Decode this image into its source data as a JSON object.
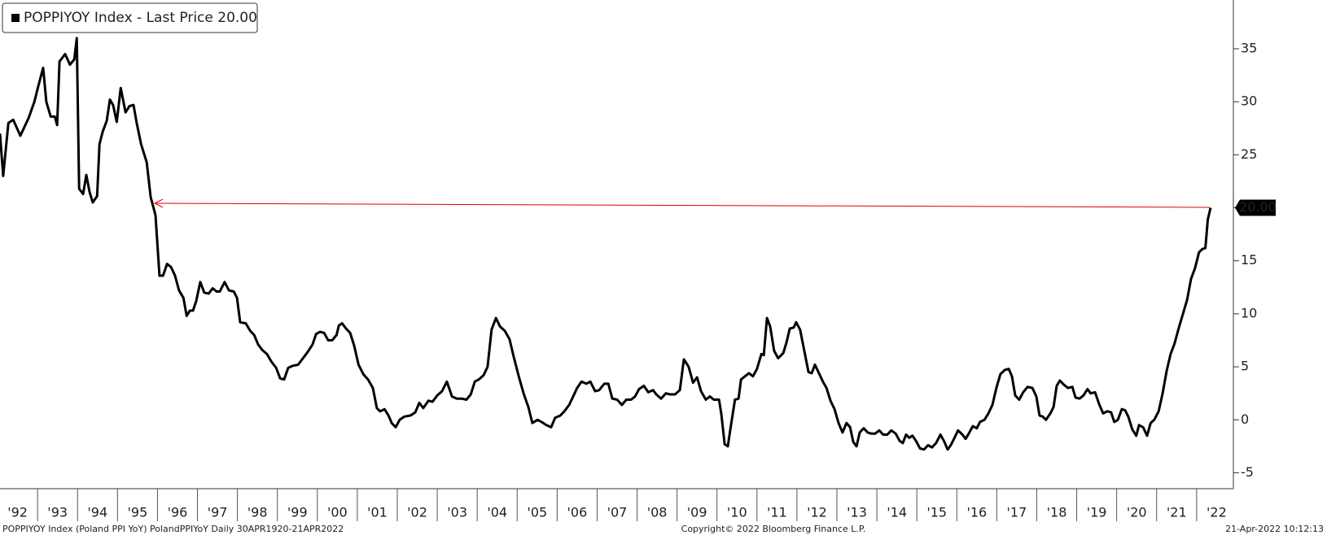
{
  "chart_data": {
    "type": "line",
    "series": [
      {
        "name": "POPPIYOY Index - Last Price 20.00",
        "color": "#000000",
        "x": [
          1992.06,
          1992.14,
          1992.27,
          1992.39,
          1992.57,
          1992.78,
          1992.92,
          1993.02,
          1993.14,
          1993.22,
          1993.33,
          1993.43,
          1993.49,
          1993.55,
          1993.69,
          1993.81,
          1993.92,
          1993.98,
          1994.04,
          1994.14,
          1994.22,
          1994.3,
          1994.38,
          1994.49,
          1994.55,
          1994.63,
          1994.73,
          1994.81,
          1994.89,
          1994.98,
          1995.08,
          1995.2,
          1995.3,
          1995.4,
          1995.48,
          1995.59,
          1995.73,
          1995.83,
          1995.95,
          1996.05,
          1996.14,
          1996.24,
          1996.34,
          1996.44,
          1996.54,
          1996.65,
          1996.73,
          1996.81,
          1996.89,
          1996.97,
          1997.07,
          1997.17,
          1997.28,
          1997.38,
          1997.48,
          1997.56,
          1997.68,
          1997.79,
          1997.91,
          1997.99,
          1998.07,
          1998.21,
          1998.32,
          1998.42,
          1998.52,
          1998.62,
          1998.74,
          1998.85,
          1998.97,
          1999.07,
          1999.17,
          1999.27,
          1999.39,
          1999.52,
          1999.64,
          1999.76,
          1999.88,
          1999.97,
          2000.07,
          2000.17,
          2000.27,
          2000.37,
          2000.48,
          2000.54,
          2000.62,
          2000.72,
          2000.82,
          2000.92,
          2001.03,
          2001.15,
          2001.27,
          2001.39,
          2001.49,
          2001.57,
          2001.68,
          2001.78,
          2001.86,
          2001.96,
          2002.06,
          2002.18,
          2002.33,
          2002.45,
          2002.55,
          2002.65,
          2002.78,
          2002.88,
          2003.0,
          2003.12,
          2003.24,
          2003.37,
          2003.49,
          2003.61,
          2003.73,
          2003.84,
          2003.94,
          2004.04,
          2004.16,
          2004.26,
          2004.36,
          2004.47,
          2004.57,
          2004.69,
          2004.81,
          2004.91,
          2005.04,
          2005.16,
          2005.28,
          2005.38,
          2005.51,
          2005.61,
          2005.73,
          2005.85,
          2005.95,
          2006.08,
          2006.18,
          2006.3,
          2006.4,
          2006.5,
          2006.61,
          2006.73,
          2006.83,
          2006.95,
          2007.05,
          2007.18,
          2007.28,
          2007.38,
          2007.5,
          2007.62,
          2007.73,
          2007.85,
          2007.95,
          2008.05,
          2008.17,
          2008.28,
          2008.4,
          2008.48,
          2008.6,
          2008.72,
          2008.82,
          2008.95,
          2009.07,
          2009.17,
          2009.29,
          2009.4,
          2009.5,
          2009.6,
          2009.72,
          2009.82,
          2009.92,
          2010.05,
          2010.11,
          2010.19,
          2010.27,
          2010.35,
          2010.45,
          2010.54,
          2010.6,
          2010.7,
          2010.8,
          2010.9,
          2011.0,
          2011.11,
          2011.17,
          2011.25,
          2011.33,
          2011.43,
          2011.53,
          2011.66,
          2011.74,
          2011.82,
          2011.92,
          2011.98,
          2012.08,
          2012.19,
          2012.29,
          2012.37,
          2012.45,
          2012.55,
          2012.65,
          2012.74,
          2012.84,
          2012.94,
          2013.04,
          2013.14,
          2013.24,
          2013.33,
          2013.41,
          2013.49,
          2013.57,
          2013.67,
          2013.77,
          2013.86,
          2013.96,
          2014.06,
          2014.16,
          2014.26,
          2014.36,
          2014.47,
          2014.57,
          2014.65,
          2014.73,
          2014.81,
          2014.89,
          2014.98,
          2015.08,
          2015.18,
          2015.28,
          2015.38,
          2015.48,
          2015.59,
          2015.69,
          2015.77,
          2015.85,
          2015.93,
          2016.03,
          2016.14,
          2016.22,
          2016.3,
          2016.4,
          2016.5,
          2016.58,
          2016.69,
          2016.79,
          2016.89,
          2016.99,
          2017.09,
          2017.2,
          2017.3,
          2017.38,
          2017.46,
          2017.56,
          2017.66,
          2017.77,
          2017.89,
          2017.99,
          2018.07,
          2018.15,
          2018.23,
          2018.34,
          2018.42,
          2018.5,
          2018.58,
          2018.68,
          2018.78,
          2018.89,
          2018.97,
          2019.07,
          2019.17,
          2019.27,
          2019.35,
          2019.46,
          2019.56,
          2019.66,
          2019.76,
          2019.86,
          2019.94,
          2020.03,
          2020.13,
          2020.21,
          2020.29,
          2020.39,
          2020.49,
          2020.56,
          2020.66,
          2020.76,
          2020.85,
          2020.94,
          2021.05,
          2021.15,
          2021.25,
          2021.35,
          2021.45,
          2021.55,
          2021.66,
          2021.76,
          2021.86,
          2021.96,
          2022.06,
          2022.14,
          2022.22,
          2022.28,
          2022.35
        ],
        "values": [
          27,
          23,
          28,
          28.3,
          26.8,
          28.5,
          30,
          31.5,
          33.2,
          30,
          28.6,
          28.6,
          27.8,
          33.8,
          34.5,
          33.5,
          34,
          36,
          21.8,
          21.3,
          23.1,
          21.5,
          20.5,
          21.1,
          26,
          27.2,
          28.2,
          30.2,
          29.7,
          28.1,
          31.3,
          29,
          29.6,
          29.7,
          28,
          26,
          24.3,
          21,
          19.3,
          13.6,
          13.6,
          14.7,
          14.4,
          13.6,
          12.2,
          11.5,
          9.8,
          10.3,
          10.3,
          11.2,
          13,
          12,
          11.9,
          12.4,
          12.1,
          12.1,
          13,
          12.2,
          12.1,
          11.5,
          9.2,
          9.1,
          8.4,
          8.0,
          7.1,
          6.6,
          6.2,
          5.5,
          4.9,
          3.9,
          3.8,
          4.9,
          5.1,
          5.2,
          5.8,
          6.4,
          7.1,
          8.1,
          8.3,
          8.2,
          7.5,
          7.5,
          8.0,
          8.9,
          9.1,
          8.6,
          8.2,
          7.0,
          5.2,
          4.3,
          3.8,
          3.0,
          1.1,
          0.8,
          1.0,
          0.4,
          -0.3,
          -0.7,
          0,
          0.3,
          0.4,
          0.7,
          1.6,
          1.1,
          1.8,
          1.7,
          2.3,
          2.7,
          3.6,
          2.2,
          2.0,
          2.0,
          1.9,
          2.4,
          3.6,
          3.8,
          4.2,
          5.0,
          8.5,
          9.6,
          8.8,
          8.4,
          7.6,
          6.0,
          4.1,
          2.5,
          1.2,
          -0.3,
          0,
          -0.2,
          -0.5,
          -0.7,
          0.2,
          0.4,
          0.8,
          1.4,
          2.2,
          3.0,
          3.6,
          3.4,
          3.6,
          2.7,
          2.8,
          3.4,
          3.4,
          2.0,
          1.9,
          1.4,
          1.9,
          1.9,
          2.2,
          2.9,
          3.2,
          2.6,
          2.8,
          2.4,
          2.0,
          2.5,
          2.4,
          2.4,
          2.8,
          5.7,
          5.0,
          3.5,
          4.0,
          2.7,
          1.9,
          2.2,
          1.9,
          1.9,
          0.5,
          -2.3,
          -2.5,
          -0.5,
          1.9,
          2,
          3.8,
          4.1,
          4.4,
          4.1,
          4.8,
          6.2,
          6.1,
          9.6,
          8.8,
          6.5,
          5.8,
          6.3,
          7.3,
          8.6,
          8.7,
          9.2,
          8.5,
          6.4,
          4.5,
          4.4,
          5.2,
          4.4,
          3.6,
          3.0,
          1.8,
          1.0,
          -0.3,
          -1.2,
          -0.3,
          -0.7,
          -2.1,
          -2.5,
          -1.2,
          -0.8,
          -1.2,
          -1.3,
          -1.3,
          -1.0,
          -1.4,
          -1.4,
          -1.0,
          -1.3,
          -2.0,
          -2.2,
          -1.4,
          -1.7,
          -1.5,
          -2.0,
          -2.7,
          -2.8,
          -2.4,
          -2.6,
          -2.2,
          -1.4,
          -2.1,
          -2.8,
          -2.4,
          -1.8,
          -1.0,
          -1.4,
          -1.8,
          -1.3,
          -0.6,
          -0.8,
          -0.2,
          0,
          0.6,
          1.4,
          3.0,
          4.3,
          4.7,
          4.8,
          4.1,
          2.3,
          1.9,
          2.6,
          3.1,
          3.0,
          2.2,
          0.4,
          0.3,
          0.0,
          0.6,
          1.2,
          3.2,
          3.7,
          3.3,
          3.0,
          3.1,
          2.1,
          2.0,
          2.3,
          2.9,
          2.5,
          2.6,
          1.5,
          0.6,
          0.8,
          0.7,
          -0.2,
          0,
          1.0,
          0.9,
          0.3,
          -0.9,
          -1.5,
          -0.5,
          -0.7,
          -1.5,
          -0.3,
          0,
          0.8,
          2.5,
          4.6,
          6.2,
          7.2,
          8.6,
          10,
          11.3,
          13.3,
          14.3,
          15.8,
          16.1,
          16.2,
          18.9,
          20.0
        ]
      }
    ],
    "last_value_label": "20.00",
    "xlim": [
      1992.06,
      2022.92
    ],
    "ylim": [
      -6.5,
      39.6
    ],
    "xticks": [
      {
        "value": 1992.5,
        "label": "'92"
      },
      {
        "value": 1993.5,
        "label": "'93"
      },
      {
        "value": 1994.5,
        "label": "'94"
      },
      {
        "value": 1995.5,
        "label": "'95"
      },
      {
        "value": 1996.5,
        "label": "'96"
      },
      {
        "value": 1997.5,
        "label": "'97"
      },
      {
        "value": 1998.5,
        "label": "'98"
      },
      {
        "value": 1999.5,
        "label": "'99"
      },
      {
        "value": 2000.5,
        "label": "'00"
      },
      {
        "value": 2001.5,
        "label": "'01"
      },
      {
        "value": 2002.5,
        "label": "'02"
      },
      {
        "value": 2003.5,
        "label": "'03"
      },
      {
        "value": 2004.5,
        "label": "'04"
      },
      {
        "value": 2005.5,
        "label": "'05"
      },
      {
        "value": 2006.5,
        "label": "'06"
      },
      {
        "value": 2007.5,
        "label": "'07"
      },
      {
        "value": 2008.5,
        "label": "'08"
      },
      {
        "value": 2009.5,
        "label": "'09"
      },
      {
        "value": 2010.5,
        "label": "'10"
      },
      {
        "value": 2011.5,
        "label": "'11"
      },
      {
        "value": 2012.5,
        "label": "'12"
      },
      {
        "value": 2013.5,
        "label": "'13"
      },
      {
        "value": 2014.5,
        "label": "'14"
      },
      {
        "value": 2015.5,
        "label": "'15"
      },
      {
        "value": 2016.5,
        "label": "'16"
      },
      {
        "value": 2017.5,
        "label": "'17"
      },
      {
        "value": 2018.5,
        "label": "'18"
      },
      {
        "value": 2019.5,
        "label": "'19"
      },
      {
        "value": 2020.5,
        "label": "'20"
      },
      {
        "value": 2021.5,
        "label": "'21"
      },
      {
        "value": 2022.5,
        "label": "'22"
      }
    ],
    "yticks": [
      -5,
      0,
      5,
      10,
      15,
      20,
      25,
      30,
      35
    ],
    "legend": "top-left",
    "footer_left": "POPPIYOY Index (Poland PPI YoY) PolandPPIYoY  Daily 30APR1920-21APR2022",
    "footer_center": "Copyright© 2022 Bloomberg Finance L.P.",
    "footer_right": "21-Apr-2022 10:12:13"
  }
}
